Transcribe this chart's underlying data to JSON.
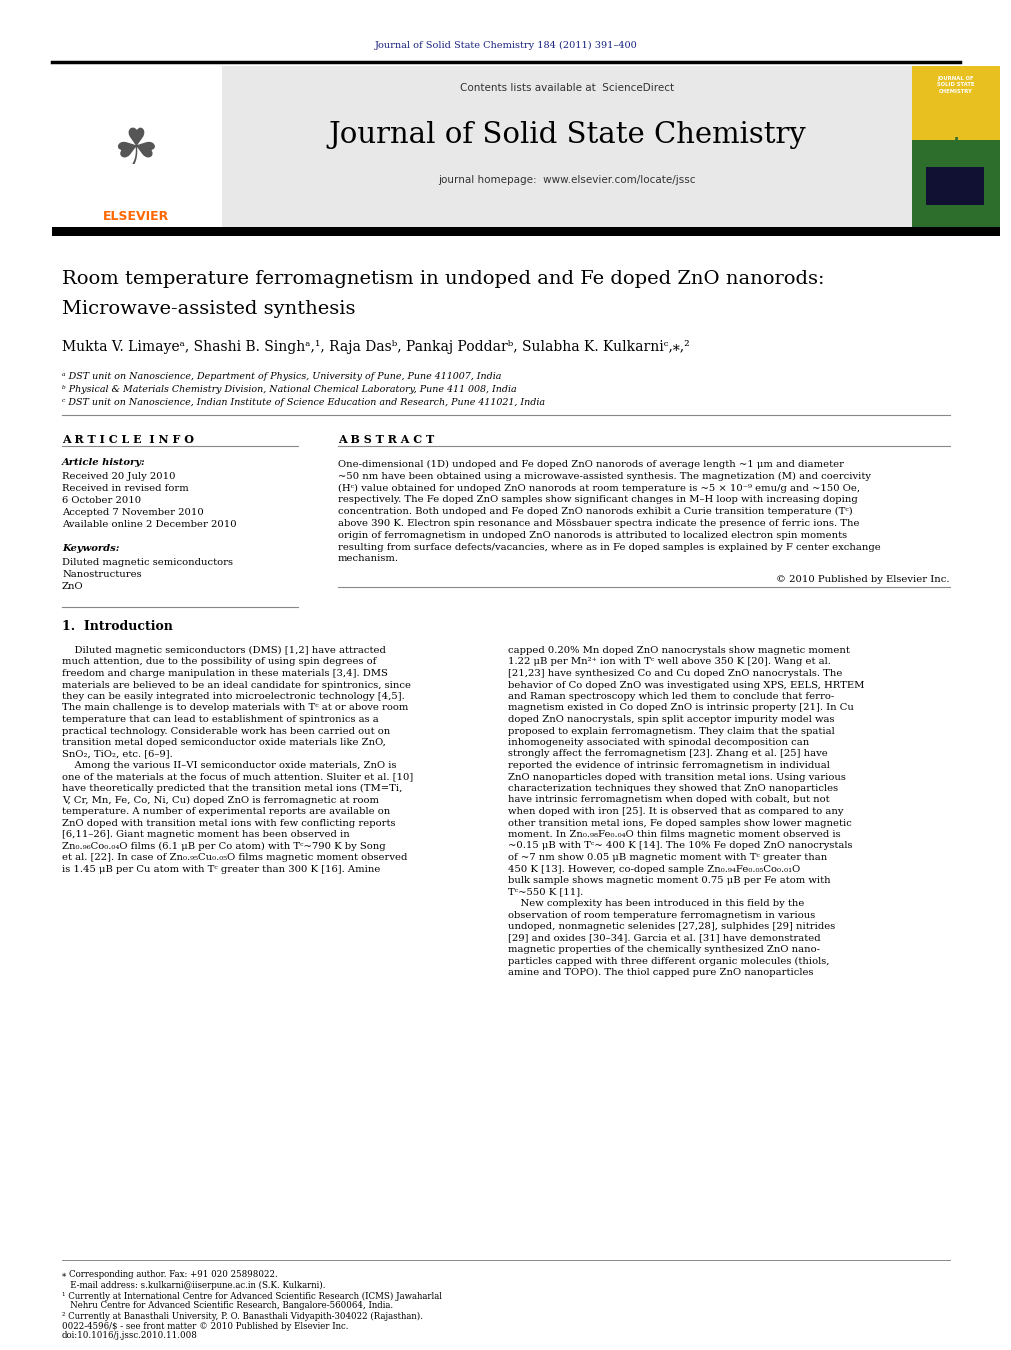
{
  "page_bg": "#ffffff",
  "top_journal_text": "Journal of Solid State Chemistry 184 (2011) 391–400",
  "top_journal_color": "#1a237e",
  "header_bg": "#e8e8e8",
  "header_contents_text": "Contents lists available at ",
  "header_sciencedirect": "ScienceDirect",
  "header_sciencedirect_color": "#1565c0",
  "journal_title": "Journal of Solid State Chemistry",
  "journal_homepage_text": "journal homepage: ",
  "journal_homepage_url": "www.elsevier.com/locate/jssc",
  "journal_homepage_url_color": "#1565c0",
  "thick_bar_color": "#000000",
  "paper_title_line1": "Room temperature ferromagnetism in undoped and Fe doped ZnO nanorods:",
  "paper_title_line2": "Microwave-assisted synthesis",
  "authors_text": "Mukta V. Limayeᵃ, Shashi B. Singhᵃ,¹, Raja Dasᵇ, Pankaj Poddarᵇ, Sulabha K. Kulkarniᶜ,⁎,²",
  "affil_a": "ᵃ DST unit on Nanoscience, Department of Physics, University of Pune, Pune 411007, India",
  "affil_b": "ᵇ Physical & Materials Chemistry Division, National Chemical Laboratory, Pune 411 008, India",
  "affil_c": "ᶜ DST unit on Nanoscience, Indian Institute of Science Education and Research, Pune 411021, India",
  "section_article_info": "A R T I C L E  I N F O",
  "article_history_label": "Article history:",
  "section_abstract": "A B S T R A C T",
  "copyright_text": "© 2010 Published by Elsevier Inc.",
  "intro_heading": "1.  Introduction",
  "footer_issn": "0022-4596/$ - see front matter © 2010 Published by Elsevier Inc.",
  "footer_doi": "doi:10.1016/j.jssc.2010.11.008",
  "elsevier_color": "#ff6600",
  "separator_color": "#cccccc"
}
